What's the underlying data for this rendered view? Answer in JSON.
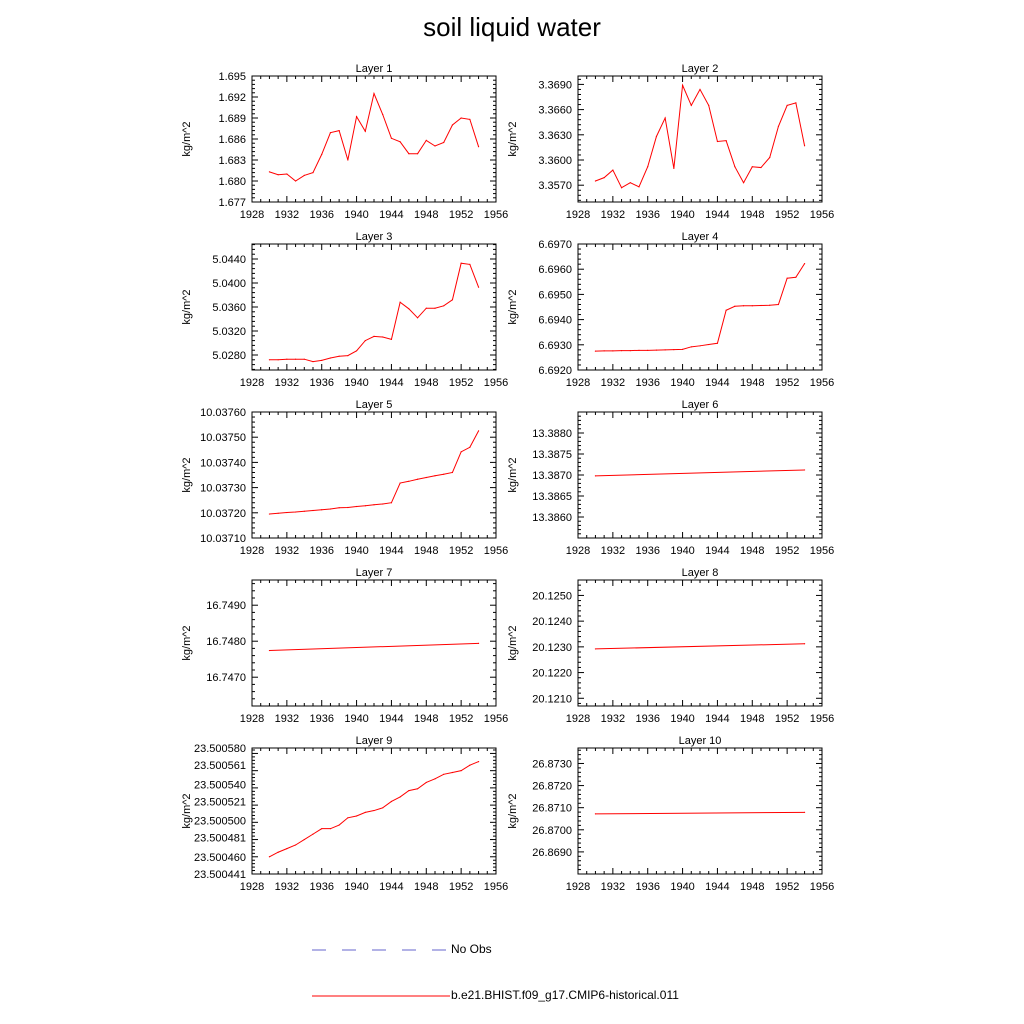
{
  "title": "soil liquid water",
  "colors": {
    "model": "#ff0000",
    "obs": "#6666cc",
    "axis": "#000000"
  },
  "legend": {
    "obs_label": "No Obs",
    "model_label": "b.e21.BHIST.f09_g17.CMIP6-historical.011"
  },
  "chart_data": [
    {
      "type": "line",
      "title": "Layer 1",
      "ylabel": "kg/m^2",
      "xlim": [
        1928,
        1956
      ],
      "xticks": [
        1928,
        1932,
        1936,
        1940,
        1944,
        1948,
        1952,
        1956
      ],
      "ylim": [
        1.677,
        1.695
      ],
      "yticks": [
        1.677,
        1.68,
        1.683,
        1.686,
        1.689,
        1.692,
        1.695
      ],
      "ytick_labels": [
        "1.677",
        "1.680",
        "1.683",
        "1.686",
        "1.689",
        "1.692",
        "1.695"
      ],
      "series": [
        {
          "x": [
            1930,
            1931,
            1932,
            1933,
            1934,
            1935,
            1936,
            1937,
            1938,
            1939,
            1940,
            1941,
            1942,
            1943,
            1944,
            1945,
            1946,
            1947,
            1948,
            1949,
            1950,
            1951,
            1952,
            1953,
            1954
          ],
          "values": [
            1.6813,
            1.6809,
            1.681,
            1.68,
            1.6808,
            1.6812,
            1.6838,
            1.6869,
            1.6872,
            1.683,
            1.6892,
            1.6871,
            1.6925,
            1.6895,
            1.6861,
            1.6856,
            1.6839,
            1.6839,
            1.6858,
            1.685,
            1.6855,
            1.688,
            1.689,
            1.6888,
            1.6849
          ]
        }
      ]
    },
    {
      "type": "line",
      "title": "Layer 2",
      "ylabel": "kg/m^2",
      "xlim": [
        1928,
        1956
      ],
      "xticks": [
        1928,
        1932,
        1936,
        1940,
        1944,
        1948,
        1952,
        1956
      ],
      "ylim": [
        3.355,
        3.37
      ],
      "yticks": [
        3.357,
        3.36,
        3.363,
        3.366,
        3.369
      ],
      "ytick_labels": [
        "3.3570",
        "3.3600",
        "3.3630",
        "3.3660",
        "3.3690"
      ],
      "series": [
        {
          "x": [
            1930,
            1931,
            1932,
            1933,
            1934,
            1935,
            1936,
            1937,
            1938,
            1939,
            1940,
            1941,
            1942,
            1943,
            1944,
            1945,
            1946,
            1947,
            1948,
            1949,
            1950,
            1951,
            1952,
            1953,
            1954
          ],
          "values": [
            3.3575,
            3.3579,
            3.3588,
            3.3567,
            3.3573,
            3.3568,
            3.3592,
            3.3628,
            3.365,
            3.359,
            3.3689,
            3.3665,
            3.3684,
            3.3665,
            3.3622,
            3.3623,
            3.3592,
            3.3573,
            3.3592,
            3.3591,
            3.3603,
            3.364,
            3.3665,
            3.3668,
            3.3617
          ]
        }
      ]
    },
    {
      "type": "line",
      "title": "Layer 3",
      "ylabel": "kg/m^2",
      "xlim": [
        1928,
        1956
      ],
      "xticks": [
        1928,
        1932,
        1936,
        1940,
        1944,
        1948,
        1952,
        1956
      ],
      "ylim": [
        5.0255,
        5.0465
      ],
      "yticks": [
        5.028,
        5.032,
        5.036,
        5.04,
        5.044
      ],
      "ytick_labels": [
        "5.0280",
        "5.0320",
        "5.0360",
        "5.0400",
        "5.0440"
      ],
      "series": [
        {
          "x": [
            1930,
            1931,
            1932,
            1933,
            1934,
            1935,
            1936,
            1937,
            1938,
            1939,
            1940,
            1941,
            1942,
            1943,
            1944,
            1945,
            1946,
            1947,
            1948,
            1949,
            1950,
            1951,
            1952,
            1953,
            1954
          ],
          "values": [
            5.0272,
            5.0272,
            5.0273,
            5.0273,
            5.0273,
            5.0269,
            5.0271,
            5.0275,
            5.0278,
            5.0279,
            5.0287,
            5.0304,
            5.0311,
            5.031,
            5.0306,
            5.0368,
            5.0357,
            5.0342,
            5.0358,
            5.0358,
            5.0362,
            5.0372,
            5.0433,
            5.0431,
            5.0393
          ]
        }
      ]
    },
    {
      "type": "line",
      "title": "Layer 4",
      "ylabel": "kg/m^2",
      "xlim": [
        1928,
        1956
      ],
      "xticks": [
        1928,
        1932,
        1936,
        1940,
        1944,
        1948,
        1952,
        1956
      ],
      "ylim": [
        6.692,
        6.697
      ],
      "yticks": [
        6.692,
        6.693,
        6.694,
        6.695,
        6.696,
        6.697
      ],
      "ytick_labels": [
        "6.6920",
        "6.6930",
        "6.6940",
        "6.6950",
        "6.6960",
        "6.6970"
      ],
      "series": [
        {
          "x": [
            1930,
            1931,
            1932,
            1933,
            1934,
            1935,
            1936,
            1937,
            1938,
            1939,
            1940,
            1941,
            1942,
            1943,
            1944,
            1945,
            1946,
            1947,
            1948,
            1949,
            1950,
            1951,
            1952,
            1953,
            1954
          ],
          "values": [
            6.69275,
            6.69276,
            6.69276,
            6.69277,
            6.69277,
            6.69278,
            6.69278,
            6.69279,
            6.6928,
            6.69281,
            6.69282,
            6.69292,
            6.69296,
            6.69301,
            6.69306,
            6.69437,
            6.69453,
            6.69455,
            6.69455,
            6.69456,
            6.69457,
            6.6946,
            6.69564,
            6.69568,
            6.69622
          ]
        }
      ]
    },
    {
      "type": "line",
      "title": "Layer 5",
      "ylabel": "kg/m^2",
      "xlim": [
        1928,
        1956
      ],
      "xticks": [
        1928,
        1932,
        1936,
        1940,
        1944,
        1948,
        1952,
        1956
      ],
      "ylim": [
        10.0371,
        10.0376
      ],
      "yticks": [
        10.0371,
        10.0372,
        10.0373,
        10.0374,
        10.0375,
        10.0376
      ],
      "ytick_labels": [
        "10.03710",
        "10.03720",
        "10.03730",
        "10.03740",
        "10.03750",
        "10.03760"
      ],
      "series": [
        {
          "x": [
            1930,
            1931,
            1932,
            1933,
            1934,
            1935,
            1936,
            1937,
            1938,
            1939,
            1940,
            1941,
            1942,
            1943,
            1944,
            1945,
            1946,
            1947,
            1948,
            1949,
            1950,
            1951,
            1952,
            1953,
            1954
          ],
          "values": [
            10.037195,
            10.037198,
            10.037201,
            10.037203,
            10.037206,
            10.037209,
            10.037212,
            10.037215,
            10.03722,
            10.037221,
            10.037225,
            10.037228,
            10.037232,
            10.037235,
            10.03724,
            10.037318,
            10.037325,
            10.037333,
            10.03734,
            10.037347,
            10.037353,
            10.03736,
            10.037442,
            10.03746,
            10.037525
          ]
        }
      ]
    },
    {
      "type": "line",
      "title": "Layer 6",
      "ylabel": "kg/m^2",
      "xlim": [
        1928,
        1956
      ],
      "xticks": [
        1928,
        1932,
        1936,
        1940,
        1944,
        1948,
        1952,
        1956
      ],
      "ylim": [
        13.3855,
        13.3885
      ],
      "yticks": [
        13.386,
        13.3865,
        13.387,
        13.3875,
        13.388
      ],
      "ytick_labels": [
        "13.3860",
        "13.3865",
        "13.3870",
        "13.3875",
        "13.3880"
      ],
      "series": [
        {
          "x": [
            1930,
            1954
          ],
          "values": [
            13.38698,
            13.38712
          ]
        }
      ]
    },
    {
      "type": "line",
      "title": "Layer 7",
      "ylabel": "kg/m^2",
      "xlim": [
        1928,
        1956
      ],
      "xticks": [
        1928,
        1932,
        1936,
        1940,
        1944,
        1948,
        1952,
        1956
      ],
      "ylim": [
        16.7462,
        16.7497
      ],
      "yticks": [
        16.747,
        16.748,
        16.749
      ],
      "ytick_labels": [
        "16.7470",
        "16.7480",
        "16.7490"
      ],
      "series": [
        {
          "x": [
            1930,
            1954
          ],
          "values": [
            16.74774,
            16.74794
          ]
        }
      ]
    },
    {
      "type": "line",
      "title": "Layer 8",
      "ylabel": "kg/m^2",
      "xlim": [
        1928,
        1956
      ],
      "xticks": [
        1928,
        1932,
        1936,
        1940,
        1944,
        1948,
        1952,
        1956
      ],
      "ylim": [
        20.1207,
        20.1256
      ],
      "yticks": [
        20.121,
        20.122,
        20.123,
        20.124,
        20.125
      ],
      "ytick_labels": [
        "20.1210",
        "20.1220",
        "20.1230",
        "20.1240",
        "20.1250"
      ],
      "series": [
        {
          "x": [
            1930,
            1954
          ],
          "values": [
            20.12292,
            20.12312
          ]
        }
      ]
    },
    {
      "type": "line",
      "title": "Layer 9",
      "ylabel": "kg/m^2",
      "xlim": [
        1928,
        1956
      ],
      "xticks": [
        1928,
        1932,
        1936,
        1940,
        1944,
        1948,
        1952,
        1956
      ],
      "ylim": [
        23.500441,
        23.50058
      ],
      "yticks": [
        23.500441,
        23.50046,
        23.500481,
        23.5005,
        23.500521,
        23.50054,
        23.500561,
        23.50058
      ],
      "ytick_labels": [
        "23.500441",
        "23.500460",
        "23.500481",
        "23.500500",
        "23.500521",
        "23.500540",
        "23.500561",
        "23.500580"
      ],
      "series": [
        {
          "x": [
            1930,
            1931,
            1932,
            1933,
            1934,
            1935,
            1936,
            1937,
            1938,
            1939,
            1940,
            1941,
            1942,
            1943,
            1944,
            1945,
            1946,
            1947,
            1948,
            1949,
            1950,
            1951,
            1952,
            1953,
            1954
          ],
          "values": [
            23.50046,
            23.500465,
            23.500469,
            23.500473,
            23.500479,
            23.500485,
            23.500491,
            23.500491,
            23.500495,
            23.500503,
            23.500505,
            23.500509,
            23.500511,
            23.500514,
            23.500521,
            23.500526,
            23.500533,
            23.500535,
            23.500542,
            23.500546,
            23.500551,
            23.500553,
            23.500555,
            23.500561,
            23.500565
          ]
        }
      ]
    },
    {
      "type": "line",
      "title": "Layer 10",
      "ylabel": "kg/m^2",
      "xlim": [
        1928,
        1956
      ],
      "xticks": [
        1928,
        1932,
        1936,
        1940,
        1944,
        1948,
        1952,
        1956
      ],
      "ylim": [
        26.868,
        26.8737
      ],
      "yticks": [
        26.869,
        26.87,
        26.871,
        26.872,
        26.873
      ],
      "ytick_labels": [
        "26.8690",
        "26.8700",
        "26.8710",
        "26.8720",
        "26.8730"
      ],
      "series": [
        {
          "x": [
            1930,
            1954
          ],
          "values": [
            26.87072,
            26.87079
          ]
        }
      ]
    }
  ]
}
